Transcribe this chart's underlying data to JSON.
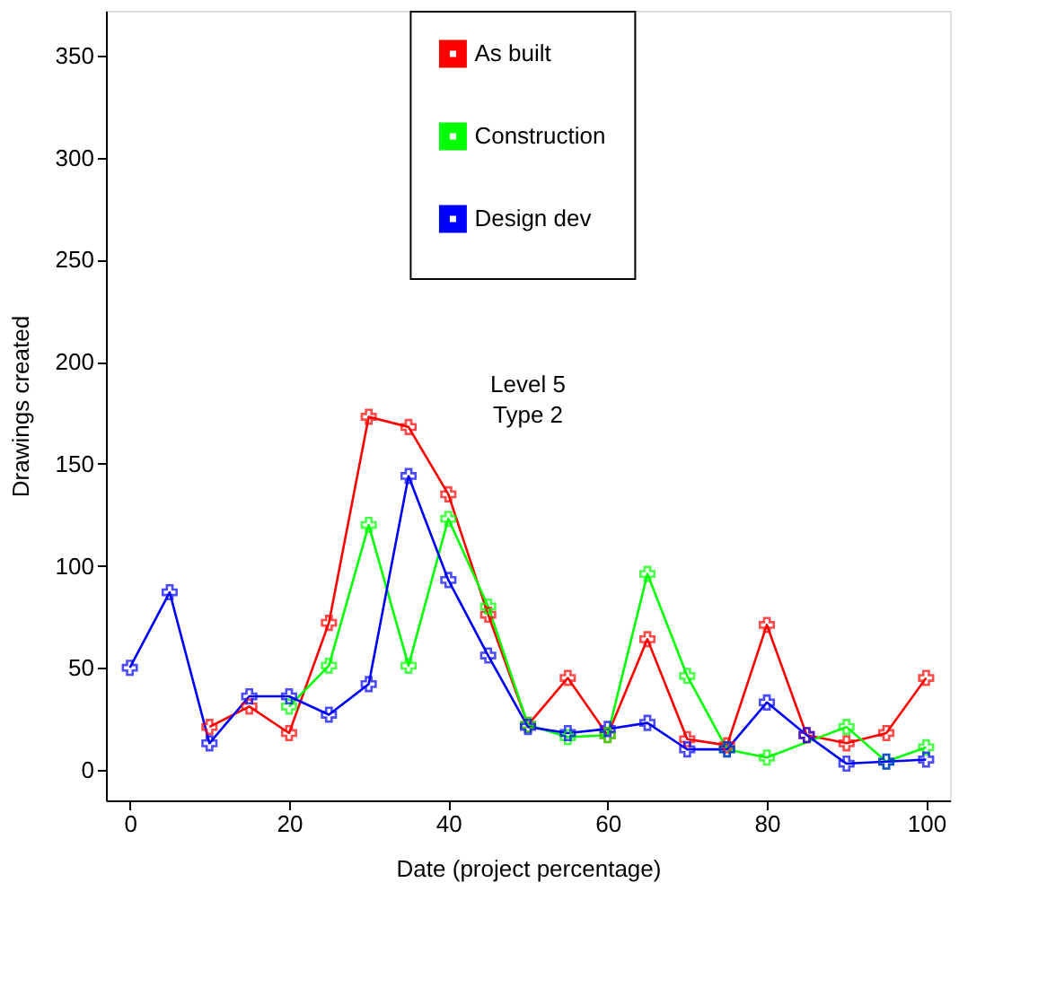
{
  "chart_data": {
    "type": "line",
    "xlabel": "Date (project percentage)",
    "ylabel": "Drawings created",
    "annotations": [
      "Level 5\nType 2"
    ],
    "series": [
      {
        "name": "As built",
        "color": "#ff0000",
        "x": [
          10,
          15,
          20,
          25,
          30,
          35,
          40,
          45,
          50,
          55,
          60,
          65,
          70,
          75,
          80,
          85,
          90,
          95,
          100
        ],
        "values": [
          21,
          31,
          18,
          72,
          173,
          168,
          135,
          76,
          22,
          45,
          17,
          64,
          15,
          12,
          71,
          17,
          13,
          18,
          45
        ]
      },
      {
        "name": "Construction",
        "color": "#00ff00",
        "x": [
          20,
          25,
          30,
          35,
          40,
          45,
          50,
          55,
          60,
          65,
          70,
          75,
          80,
          90,
          95,
          100
        ],
        "values": [
          31,
          51,
          120,
          51,
          123,
          80,
          22,
          16,
          17,
          96,
          46,
          10,
          6,
          21,
          4,
          11
        ]
      },
      {
        "name": "Design dev",
        "color": "#0000ff",
        "x": [
          0,
          5,
          10,
          15,
          20,
          25,
          30,
          35,
          40,
          45,
          50,
          55,
          60,
          65,
          70,
          75,
          80,
          85,
          90,
          95,
          100
        ],
        "values": [
          50,
          87,
          13,
          36,
          36,
          27,
          42,
          144,
          93,
          56,
          21,
          18,
          20,
          23,
          10,
          10,
          33,
          17,
          3,
          4,
          5
        ]
      }
    ],
    "xlim": [
      -3,
      103
    ],
    "ylim": [
      -15,
      372
    ],
    "xticks": [
      0,
      20,
      40,
      60,
      80,
      100
    ],
    "yticks": [
      0,
      50,
      100,
      150,
      200,
      250,
      300,
      350
    ],
    "grid": false,
    "legend": "top",
    "marker": "cross",
    "line_style": "solid"
  }
}
